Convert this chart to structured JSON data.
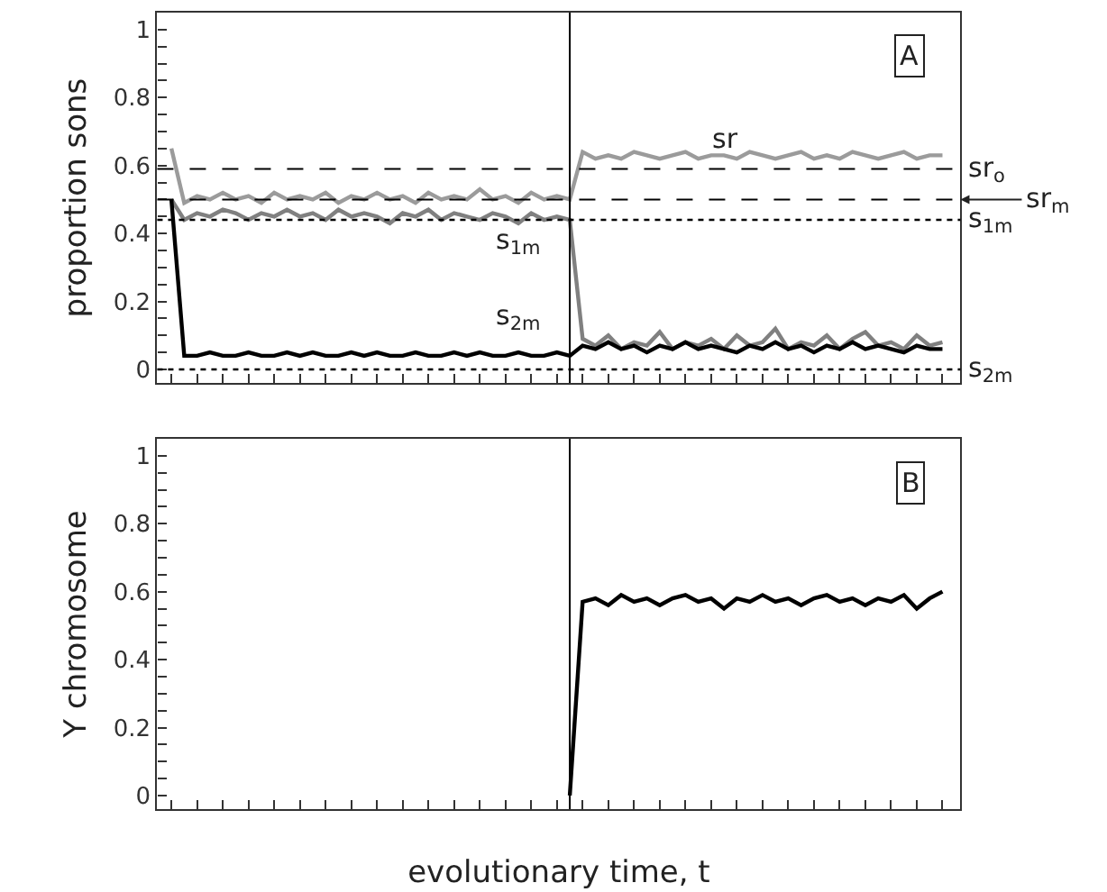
{
  "chart_data": [
    {
      "type": "line",
      "ylabel": "proportion sons",
      "tick_labels": "y",
      "marker": "none",
      "categories": [
        null,
        null,
        null,
        null,
        null,
        null,
        null,
        null,
        null,
        null,
        null,
        null,
        null,
        null,
        null,
        null,
        null,
        null,
        null,
        null,
        null,
        null,
        null,
        null,
        null,
        null,
        null,
        null,
        null,
        null,
        null,
        null,
        null,
        null,
        null,
        null,
        null,
        null,
        null,
        null,
        null,
        null,
        null,
        null,
        null,
        null,
        null,
        null,
        null,
        null,
        null,
        null,
        null,
        null,
        null,
        null,
        null,
        null,
        null,
        null,
        null
      ],
      "ylim": [
        -0.04,
        1.05
      ],
      "yticks": [
        0,
        {
          "value": 0.05,
          "label": null
        },
        {
          "value": 0.1,
          "label": null
        },
        {
          "value": 0.15,
          "label": null
        },
        0.2,
        {
          "value": 0.25,
          "label": null
        },
        {
          "value": 0.3,
          "label": null
        },
        {
          "value": 0.35,
          "label": null
        },
        0.4,
        {
          "value": 0.45,
          "label": null
        },
        {
          "value": 0.5,
          "label": null
        },
        {
          "value": 0.55,
          "label": null
        },
        0.6,
        {
          "value": 0.65,
          "label": null
        },
        {
          "value": 0.7,
          "label": null
        },
        {
          "value": 0.75,
          "label": null
        },
        0.8,
        {
          "value": 0.85,
          "label": null
        },
        {
          "value": 0.9,
          "label": null
        },
        {
          "value": 0.95,
          "label": null
        },
        1
      ],
      "series": [
        {
          "color": "#9b9b9b",
          "values": [
            0.65,
            0.49,
            0.51,
            0.5,
            0.52,
            0.5,
            0.51,
            0.49,
            0.52,
            0.5,
            0.51,
            0.5,
            0.52,
            0.49,
            0.51,
            0.5,
            0.52,
            0.5,
            0.51,
            0.49,
            0.52,
            0.5,
            0.51,
            0.5,
            0.53,
            0.5,
            0.51,
            0.49,
            0.52,
            0.5,
            0.51,
            0.5,
            0.64,
            0.62,
            0.63,
            0.62,
            0.64,
            0.63,
            0.62,
            0.63,
            0.64,
            0.62,
            0.63,
            0.63,
            0.62,
            0.64,
            0.63,
            0.62,
            0.63,
            0.64,
            0.62,
            0.63,
            0.62,
            0.64,
            0.63,
            0.62,
            0.63,
            0.64,
            0.62,
            0.63,
            0.63
          ]
        },
        {
          "color": "#808080",
          "values": [
            0.5,
            0.44,
            0.46,
            0.45,
            0.47,
            0.46,
            0.44,
            0.46,
            0.45,
            0.47,
            0.45,
            0.46,
            0.44,
            0.47,
            0.45,
            0.46,
            0.45,
            0.43,
            0.46,
            0.45,
            0.47,
            0.44,
            0.46,
            0.45,
            0.44,
            0.46,
            0.45,
            0.43,
            0.46,
            0.44,
            0.45,
            0.44,
            0.09,
            0.07,
            0.1,
            0.06,
            0.08,
            0.07,
            0.11,
            0.06,
            0.08,
            0.07,
            0.09,
            0.06,
            0.1,
            0.07,
            0.08,
            0.12,
            0.06,
            0.08,
            0.07,
            0.1,
            0.06,
            0.09,
            0.11,
            0.07,
            0.08,
            0.06,
            0.1,
            0.07,
            0.08
          ]
        },
        {
          "color": "#000000",
          "values": [
            0.5,
            0.04,
            0.04,
            0.05,
            0.04,
            0.04,
            0.05,
            0.04,
            0.04,
            0.05,
            0.04,
            0.05,
            0.04,
            0.04,
            0.05,
            0.04,
            0.05,
            0.04,
            0.04,
            0.05,
            0.04,
            0.04,
            0.05,
            0.04,
            0.05,
            0.04,
            0.04,
            0.05,
            0.04,
            0.04,
            0.05,
            0.04,
            0.07,
            0.06,
            0.08,
            0.06,
            0.07,
            0.05,
            0.07,
            0.06,
            0.08,
            0.06,
            0.07,
            0.06,
            0.05,
            0.07,
            0.06,
            0.08,
            0.06,
            0.07,
            0.05,
            0.07,
            0.06,
            0.08,
            0.06,
            0.07,
            0.06,
            0.05,
            0.07,
            0.06,
            0.06
          ]
        }
      ],
      "ref_lines": [
        {
          "axis": "y",
          "value": 0.59,
          "label": "sr$_{o}$",
          "color": "#000000",
          "line_style": "dashed"
        },
        {
          "axis": "y",
          "value": 0.5,
          "label": "sr$_{m}$",
          "color": "#000000",
          "line_style": "dashed"
        },
        {
          "axis": "y",
          "value": 0.44,
          "label": "s$_{1m}$",
          "color": "#000000",
          "line_style": "dotted"
        },
        {
          "axis": "y",
          "value": 0,
          "label": "s$_{2m}$",
          "color": "#000000",
          "line_style": "dotted"
        }
      ],
      "annotations": [
        "sr",
        "s$_{1m}$",
        "s$_{2m}$",
        "A"
      ]
    },
    {
      "type": "line",
      "ylabel": "Y chromosome",
      "xlabel": "evolutionary time, t",
      "tick_labels": "y",
      "marker": "none",
      "categories": [
        null,
        null,
        null,
        null,
        null,
        null,
        null,
        null,
        null,
        null,
        null,
        null,
        null,
        null,
        null,
        null,
        null,
        null,
        null,
        null,
        null,
        null,
        null,
        null,
        null,
        null,
        null,
        null,
        null,
        null,
        null,
        null,
        null,
        null,
        null,
        null,
        null,
        null,
        null,
        null,
        null,
        null,
        null,
        null,
        null,
        null,
        null,
        null,
        null,
        null,
        null,
        null,
        null,
        null,
        null,
        null,
        null,
        null,
        null,
        null,
        null
      ],
      "ylim": [
        -0.04,
        1.05
      ],
      "yticks": [
        0,
        {
          "value": 0.05,
          "label": null
        },
        {
          "value": 0.1,
          "label": null
        },
        {
          "value": 0.15,
          "label": null
        },
        0.2,
        {
          "value": 0.25,
          "label": null
        },
        {
          "value": 0.3,
          "label": null
        },
        {
          "value": 0.35,
          "label": null
        },
        0.4,
        {
          "value": 0.45,
          "label": null
        },
        {
          "value": 0.5,
          "label": null
        },
        {
          "value": 0.55,
          "label": null
        },
        0.6,
        {
          "value": 0.65,
          "label": null
        },
        {
          "value": 0.7,
          "label": null
        },
        {
          "value": 0.75,
          "label": null
        },
        0.8,
        {
          "value": 0.85,
          "label": null
        },
        {
          "value": 0.9,
          "label": null
        },
        {
          "value": 0.95,
          "label": null
        },
        1
      ],
      "series": [
        {
          "color": "#000000",
          "values": [
            null,
            null,
            null,
            null,
            null,
            null,
            null,
            null,
            null,
            null,
            null,
            null,
            null,
            null,
            null,
            null,
            null,
            null,
            null,
            null,
            null,
            null,
            null,
            null,
            null,
            null,
            null,
            null,
            null,
            null,
            null,
            0,
            0.57,
            0.58,
            0.56,
            0.59,
            0.57,
            0.58,
            0.56,
            0.58,
            0.59,
            0.57,
            0.58,
            0.55,
            0.58,
            0.57,
            0.59,
            0.57,
            0.58,
            0.56,
            0.58,
            0.59,
            0.57,
            0.58,
            0.56,
            0.58,
            0.57,
            0.59,
            0.55,
            0.58,
            0.6
          ]
        }
      ],
      "annotations": [
        "B"
      ]
    }
  ]
}
